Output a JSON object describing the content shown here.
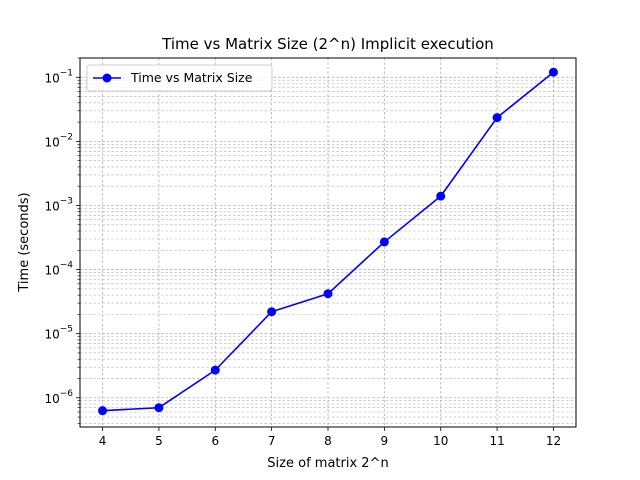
{
  "chart_data": {
    "type": "line",
    "title": "Time vs Matrix Size (2^n) Implicit execution",
    "xlabel": "Size of matrix 2^n",
    "ylabel": "Time (seconds)",
    "x": [
      4,
      5,
      6,
      7,
      8,
      9,
      10,
      11,
      12
    ],
    "xlim": [
      3.6,
      12.4
    ],
    "yscale": "log",
    "ylim": [
      3.5e-07,
      0.2
    ],
    "grid": true,
    "grid_which": "both",
    "legend_position": "top-left",
    "series": [
      {
        "name": "Time vs Matrix Size",
        "color": "#0000ff",
        "marker": "circle",
        "values": [
          6.3e-07,
          7e-07,
          2.7e-06,
          2.2e-05,
          4.2e-05,
          0.00027,
          0.0014,
          0.0235,
          0.12
        ]
      }
    ],
    "x_tick_labels": [
      "4",
      "5",
      "6",
      "7",
      "8",
      "9",
      "10",
      "11",
      "12"
    ],
    "y_ticks": [
      {
        "value": 1e-06,
        "base": "10",
        "exp": "−6"
      },
      {
        "value": 1e-05,
        "base": "10",
        "exp": "−5"
      },
      {
        "value": 0.0001,
        "base": "10",
        "exp": "−4"
      },
      {
        "value": 0.001,
        "base": "10",
        "exp": "−3"
      },
      {
        "value": 0.01,
        "base": "10",
        "exp": "−2"
      },
      {
        "value": 0.1,
        "base": "10",
        "exp": "−1"
      }
    ]
  }
}
